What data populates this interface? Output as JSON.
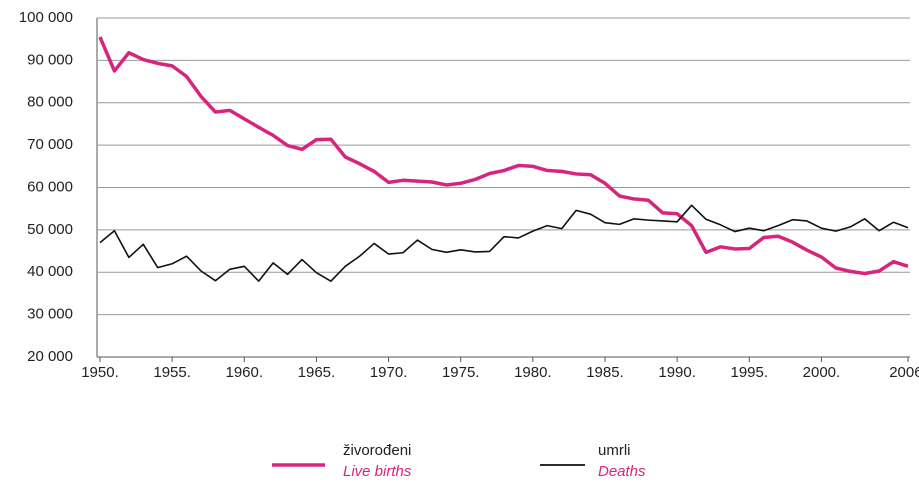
{
  "chart_data": {
    "type": "line",
    "x": [
      1950,
      1951,
      1952,
      1953,
      1954,
      1955,
      1956,
      1957,
      1958,
      1959,
      1960,
      1961,
      1962,
      1963,
      1964,
      1965,
      1966,
      1967,
      1968,
      1969,
      1970,
      1971,
      1972,
      1973,
      1974,
      1975,
      1976,
      1977,
      1978,
      1979,
      1980,
      1981,
      1982,
      1983,
      1984,
      1985,
      1986,
      1987,
      1988,
      1989,
      1990,
      1991,
      1992,
      1993,
      1994,
      1995,
      1996,
      1997,
      1998,
      1999,
      2000,
      2001,
      2002,
      2003,
      2004,
      2005,
      2006
    ],
    "series": [
      {
        "name": "živorođeni",
        "name_en": "Live births",
        "color": "#d6247f",
        "values": [
          95500,
          87500,
          91800,
          90200,
          89300,
          88700,
          86200,
          81500,
          77800,
          78200,
          76200,
          74200,
          72300,
          69900,
          69000,
          71300,
          71400,
          67200,
          65600,
          63800,
          61200,
          61700,
          61500,
          61300,
          60600,
          61000,
          61900,
          63300,
          64000,
          65200,
          65000,
          64000,
          63800,
          63200,
          63000,
          61000,
          58000,
          57300,
          57000,
          54000,
          53800,
          51000,
          44700,
          46000,
          45500,
          45600,
          48200,
          48500,
          47100,
          45200,
          43600,
          41000,
          40200,
          39700,
          40300,
          42500,
          41400
        ]
      },
      {
        "name": "umrli",
        "name_en": "Deaths",
        "color": "#111111",
        "values": [
          47000,
          49800,
          43500,
          46600,
          41100,
          42000,
          43800,
          40300,
          38000,
          40700,
          41400,
          37900,
          42200,
          39500,
          43000,
          39900,
          37900,
          41400,
          43800,
          46800,
          44300,
          44600,
          47600,
          45400,
          44700,
          45300,
          44800,
          44900,
          48400,
          48100,
          49700,
          51000,
          50300,
          54600,
          53700,
          51700,
          51300,
          52600,
          52300,
          52100,
          51900,
          55800,
          52500,
          51200,
          49600,
          50400,
          49800,
          51000,
          52400,
          52100,
          50400,
          49700,
          50700,
          52600,
          49800,
          51800,
          50500
        ]
      }
    ],
    "xlim": [
      1950,
      2006
    ],
    "xticks": [
      {
        "value": 1950,
        "label": "1950."
      },
      {
        "value": 1955,
        "label": "1955."
      },
      {
        "value": 1960,
        "label": "1960."
      },
      {
        "value": 1965,
        "label": "1965."
      },
      {
        "value": 1970,
        "label": "1970."
      },
      {
        "value": 1975,
        "label": "1975."
      },
      {
        "value": 1980,
        "label": "1980."
      },
      {
        "value": 1985,
        "label": "1985."
      },
      {
        "value": 1990,
        "label": "1990."
      },
      {
        "value": 1995,
        "label": "1995."
      },
      {
        "value": 2000,
        "label": "2000."
      },
      {
        "value": 2006,
        "label": "2006."
      }
    ],
    "ylim": [
      20000,
      100000
    ],
    "yticks": [
      {
        "value": 20000,
        "label": "20 000"
      },
      {
        "value": 30000,
        "label": "30 000"
      },
      {
        "value": 40000,
        "label": "40 000"
      },
      {
        "value": 50000,
        "label": "50 000"
      },
      {
        "value": 60000,
        "label": "60 000"
      },
      {
        "value": 70000,
        "label": "70 000"
      },
      {
        "value": 80000,
        "label": "80 000"
      },
      {
        "value": 90000,
        "label": "90 000"
      },
      {
        "value": 100000,
        "label": "100 000"
      }
    ],
    "grid": true
  }
}
